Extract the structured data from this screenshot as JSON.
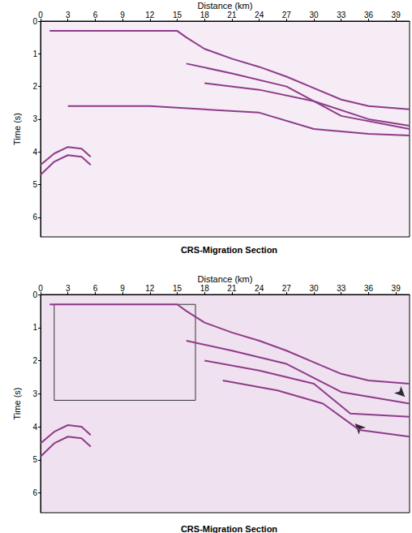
{
  "chart_data": [
    {
      "type": "line",
      "title": "CRS-Migration Section",
      "x_label": "Distance (km)",
      "y_label": "Time (s)",
      "xlim": [
        0,
        40.5
      ],
      "xticks": [
        0,
        3,
        6,
        9,
        12,
        15,
        18,
        21,
        24,
        27,
        30,
        33,
        36,
        39
      ],
      "ylim": [
        0,
        6.6
      ],
      "yticks": [
        0,
        1,
        2,
        3,
        4,
        5,
        6
      ],
      "grid": false,
      "series": [
        {
          "color": "#8e3b8a",
          "x": [
            1,
            15,
            16,
            18,
            21,
            24,
            27,
            30,
            33,
            36,
            40.5
          ],
          "values": [
            0.3,
            0.3,
            0.5,
            0.85,
            1.15,
            1.4,
            1.7,
            2.05,
            2.4,
            2.6,
            2.7
          ]
        },
        {
          "color": "#8e3b8a",
          "x": [
            16,
            21,
            27,
            33,
            40.5
          ],
          "values": [
            1.3,
            1.6,
            2.0,
            2.9,
            3.3
          ]
        },
        {
          "color": "#8e3b8a",
          "x": [
            18,
            24,
            30,
            36,
            40.5
          ],
          "values": [
            1.9,
            2.1,
            2.45,
            3.0,
            3.2
          ]
        },
        {
          "color": "#8e3b8a",
          "x": [
            3,
            12,
            18,
            24,
            30,
            36,
            40.5
          ],
          "values": [
            2.6,
            2.6,
            2.7,
            2.8,
            3.3,
            3.45,
            3.5
          ]
        },
        {
          "color": "#8e3b8a",
          "x": [
            0,
            1.5,
            3,
            4.5,
            5.5
          ],
          "values": [
            4.4,
            4.05,
            3.85,
            3.9,
            4.15
          ]
        },
        {
          "color": "#8e3b8a",
          "x": [
            0,
            1.5,
            3,
            4.5,
            5.5
          ],
          "values": [
            4.7,
            4.3,
            4.1,
            4.15,
            4.4
          ]
        }
      ]
    },
    {
      "type": "line",
      "title": "CRS-Migration Section",
      "x_label": "Distance (km)",
      "y_label": "Time (s)",
      "xlim": [
        0,
        40.5
      ],
      "xticks": [
        0,
        3,
        6,
        9,
        12,
        15,
        18,
        21,
        24,
        27,
        30,
        33,
        36,
        39
      ],
      "ylim": [
        0,
        6.6
      ],
      "yticks": [
        0,
        1,
        2,
        3,
        4,
        5,
        6
      ],
      "grid": false,
      "series": [
        {
          "color": "#8e3b8a",
          "x": [
            1,
            15,
            16,
            18,
            21,
            24,
            27,
            30,
            33,
            36,
            40.5
          ],
          "values": [
            0.3,
            0.3,
            0.5,
            0.85,
            1.15,
            1.4,
            1.7,
            2.05,
            2.4,
            2.6,
            2.7
          ]
        },
        {
          "color": "#8e3b8a",
          "x": [
            16,
            21,
            27,
            33,
            40.5
          ],
          "values": [
            1.4,
            1.7,
            2.1,
            2.95,
            3.3
          ]
        },
        {
          "color": "#8e3b8a",
          "x": [
            18,
            24,
            30,
            34,
            40.5
          ],
          "values": [
            2.0,
            2.3,
            2.7,
            3.6,
            3.7
          ]
        },
        {
          "color": "#8e3b8a",
          "x": [
            20,
            26,
            31,
            35,
            40.5
          ],
          "values": [
            2.6,
            2.9,
            3.3,
            4.1,
            4.3
          ]
        },
        {
          "color": "#8e3b8a",
          "x": [
            0,
            1.5,
            3,
            4.5,
            5.5
          ],
          "values": [
            4.5,
            4.15,
            3.95,
            4.0,
            4.25
          ]
        },
        {
          "color": "#8e3b8a",
          "x": [
            0,
            1.5,
            3,
            4.5,
            5.5
          ],
          "values": [
            4.9,
            4.5,
            4.3,
            4.35,
            4.6
          ]
        }
      ],
      "box": {
        "x": [
          1.5,
          17
        ],
        "y": [
          0.3,
          3.2
        ]
      },
      "arrows": {
        "x": [
          40,
          34.5
        ],
        "values": [
          3.1,
          3.9
        ]
      }
    }
  ]
}
